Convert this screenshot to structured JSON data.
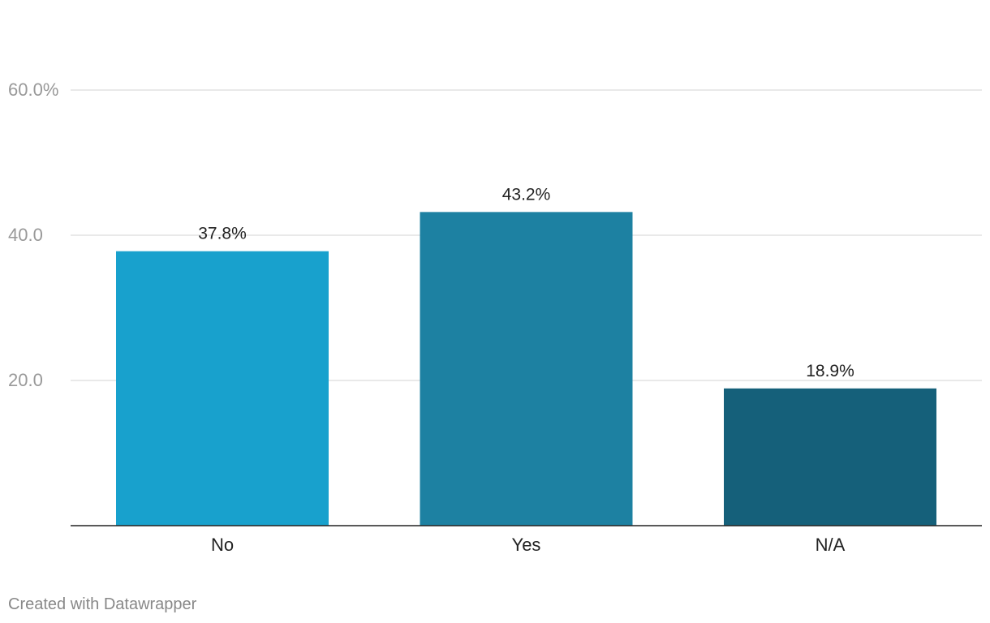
{
  "chart_data": {
    "type": "bar",
    "categories": [
      "No",
      "Yes",
      "N/A"
    ],
    "values": [
      37.8,
      43.2,
      18.9
    ],
    "value_labels": [
      "37.8%",
      "43.2%",
      "18.9%"
    ],
    "bar_colors": [
      "#18a1cd",
      "#1d81a2",
      "#15607a"
    ],
    "y_ticks": [
      {
        "value": 20,
        "label": "20.0"
      },
      {
        "value": 40,
        "label": "40.0"
      },
      {
        "value": 60,
        "label": "60.0%"
      }
    ],
    "ylim": [
      0,
      60
    ],
    "grid": true,
    "title": "",
    "xlabel": "",
    "ylabel": ""
  },
  "footer": {
    "credit": "Created with Datawrapper"
  }
}
